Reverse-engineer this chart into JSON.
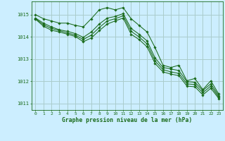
{
  "title": "Graphe pression niveau de la mer (hPa)",
  "bg_color": "#cceeff",
  "grid_color": "#aacccc",
  "line_color": "#1a6b1a",
  "xlim": [
    -0.5,
    23.5
  ],
  "ylim": [
    1010.7,
    1015.6
  ],
  "yticks": [
    1011,
    1012,
    1013,
    1014,
    1015
  ],
  "xticks": [
    0,
    1,
    2,
    3,
    4,
    5,
    6,
    7,
    8,
    9,
    10,
    11,
    12,
    13,
    14,
    15,
    16,
    17,
    18,
    19,
    20,
    21,
    22,
    23
  ],
  "series": [
    [
      1015.0,
      1014.82,
      1014.72,
      1014.62,
      1014.62,
      1014.52,
      1014.45,
      1014.82,
      1015.22,
      1015.32,
      1015.22,
      1015.32,
      1014.82,
      1014.52,
      1014.22,
      1013.52,
      1012.72,
      1012.62,
      1012.72,
      1012.02,
      1012.12,
      1011.62,
      1012.02,
      1011.42
    ],
    [
      1014.85,
      1014.62,
      1014.45,
      1014.32,
      1014.25,
      1014.15,
      1013.98,
      1014.22,
      1014.58,
      1014.85,
      1014.92,
      1015.05,
      1014.38,
      1014.12,
      1013.82,
      1013.05,
      1012.62,
      1012.55,
      1012.48,
      1011.98,
      1011.95,
      1011.58,
      1011.88,
      1011.35
    ],
    [
      1014.82,
      1014.55,
      1014.38,
      1014.28,
      1014.18,
      1014.08,
      1013.88,
      1014.08,
      1014.42,
      1014.72,
      1014.82,
      1014.95,
      1014.25,
      1014.0,
      1013.68,
      1012.92,
      1012.52,
      1012.42,
      1012.35,
      1011.88,
      1011.85,
      1011.48,
      1011.78,
      1011.28
    ],
    [
      1014.8,
      1014.48,
      1014.3,
      1014.22,
      1014.12,
      1014.02,
      1013.78,
      1013.95,
      1014.28,
      1014.58,
      1014.72,
      1014.85,
      1014.12,
      1013.88,
      1013.55,
      1012.8,
      1012.42,
      1012.32,
      1012.25,
      1011.78,
      1011.75,
      1011.38,
      1011.68,
      1011.22
    ]
  ],
  "figsize": [
    3.2,
    2.0
  ],
  "dpi": 100
}
